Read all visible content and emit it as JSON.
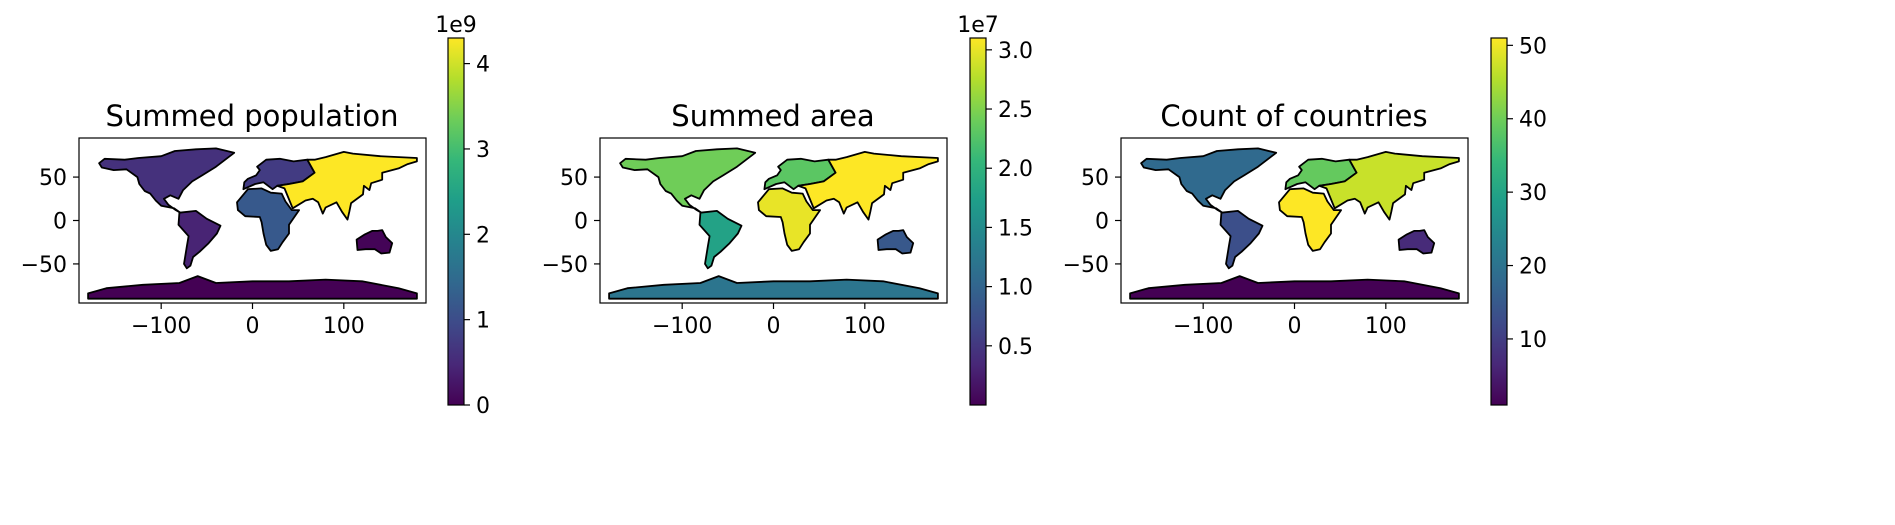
{
  "chart_data": [
    {
      "type": "choropleth",
      "title": "Summed population",
      "xlim": [
        -190,
        190
      ],
      "ylim": [
        -95,
        95
      ],
      "xticks": [
        -100,
        0,
        100
      ],
      "yticks": [
        50,
        0,
        -50
      ],
      "colorbar": {
        "range": [
          0,
          4.3
        ],
        "offset_label": "1e9",
        "ticks": [
          0,
          1,
          2,
          3,
          4
        ]
      },
      "regions": [
        {
          "name": "North America",
          "value": 0.6
        },
        {
          "name": "South America",
          "value": 0.43
        },
        {
          "name": "Europe",
          "value": 0.75
        },
        {
          "name": "Africa",
          "value": 1.2
        },
        {
          "name": "Asia",
          "value": 4.3
        },
        {
          "name": "Oceania",
          "value": 0.04
        },
        {
          "name": "Antarctica",
          "value": 0.0
        }
      ]
    },
    {
      "type": "choropleth",
      "title": "Summed area",
      "xlim": [
        -190,
        190
      ],
      "ylim": [
        -95,
        95
      ],
      "xticks": [
        -100,
        0,
        100
      ],
      "yticks": [
        50,
        0,
        -50
      ],
      "colorbar": {
        "range": [
          0.0,
          3.1
        ],
        "offset_label": "1e7",
        "ticks": [
          0.5,
          1.0,
          1.5,
          2.0,
          2.5,
          3.0
        ]
      },
      "regions": [
        {
          "name": "North America",
          "value": 2.42
        },
        {
          "name": "South America",
          "value": 1.78
        },
        {
          "name": "Europe",
          "value": 2.3
        },
        {
          "name": "Africa",
          "value": 3.0
        },
        {
          "name": "Asia",
          "value": 3.1
        },
        {
          "name": "Oceania",
          "value": 0.85
        },
        {
          "name": "Antarctica",
          "value": 1.2
        }
      ]
    },
    {
      "type": "choropleth",
      "title": "Count of countries",
      "xlim": [
        -190,
        190
      ],
      "ylim": [
        -95,
        95
      ],
      "xticks": [
        -100,
        0,
        100
      ],
      "yticks": [
        50,
        0,
        -50
      ],
      "colorbar": {
        "range": [
          1,
          51
        ],
        "offset_label": "",
        "ticks": [
          10,
          20,
          30,
          40,
          50
        ]
      },
      "regions": [
        {
          "name": "North America",
          "value": 18
        },
        {
          "name": "South America",
          "value": 13
        },
        {
          "name": "Europe",
          "value": 39
        },
        {
          "name": "Africa",
          "value": 51
        },
        {
          "name": "Asia",
          "value": 47
        },
        {
          "name": "Oceania",
          "value": 7
        },
        {
          "name": "Antarctica",
          "value": 1
        }
      ]
    }
  ]
}
